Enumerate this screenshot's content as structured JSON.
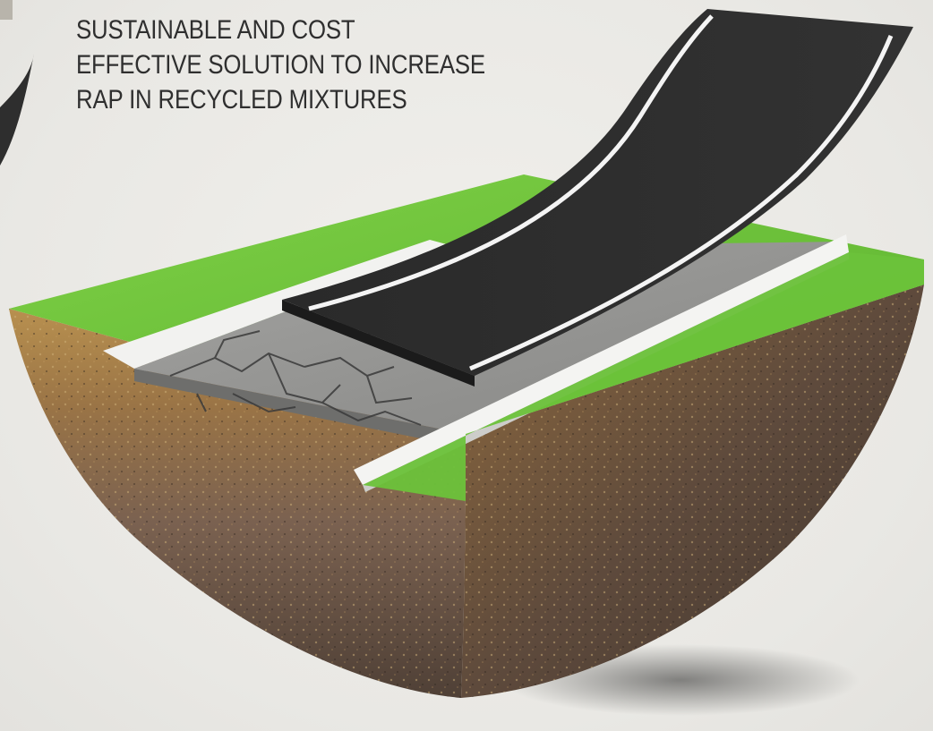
{
  "headline": {
    "lines": [
      "SUSTAINABLE AND COST",
      "EFFECTIVE SOLUTION TO INCREASE",
      "RAP IN RECYCLED MIXTURES"
    ]
  },
  "illustration": {
    "subject": "soil cross-section with grass, curbs, cracked old pavement and new asphalt layer peeling up",
    "colors": {
      "background": "#ecebe7",
      "grass": "#6cc33a",
      "asphalt": "#2b2b2b",
      "lane_marking": "#f4f4f4",
      "curb": "#f2f2f0",
      "old_pavement": "#9a9a98",
      "soil_top": "#b08a4e",
      "soil_bottom": "#5b4a3c",
      "text": "#2f2f2f"
    }
  }
}
